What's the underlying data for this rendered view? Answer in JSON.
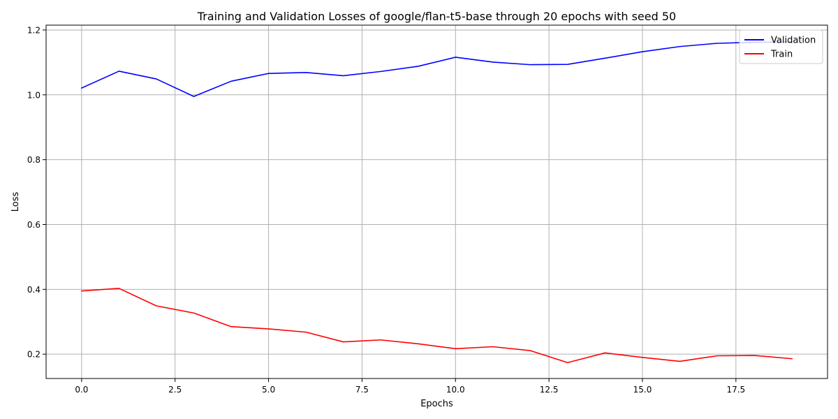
{
  "chart_data": {
    "type": "line",
    "title": "Training and Validation Losses of google/flan-t5-base through 20 epochs with seed 50",
    "xlabel": "Epochs",
    "ylabel": "Loss",
    "xlim": [
      -0.95,
      19.95
    ],
    "ylim": [
      0.125,
      1.215
    ],
    "xticks": [
      0.0,
      2.5,
      5.0,
      7.5,
      10.0,
      12.5,
      15.0,
      17.5
    ],
    "xtick_labels": [
      "0.0",
      "2.5",
      "5.0",
      "7.5",
      "10.0",
      "12.5",
      "15.0",
      "17.5"
    ],
    "yticks": [
      0.2,
      0.4,
      0.6,
      0.8,
      1.0,
      1.2
    ],
    "ytick_labels": [
      "0.2",
      "0.4",
      "0.6",
      "0.8",
      "1.0",
      "1.2"
    ],
    "grid": true,
    "legend_position": "top-right",
    "x": [
      0,
      1,
      2,
      3,
      4,
      5,
      6,
      7,
      8,
      9,
      10,
      11,
      12,
      13,
      14,
      15,
      16,
      17,
      18,
      19
    ],
    "series": [
      {
        "name": "Validation",
        "color": "#0000ff",
        "values": [
          1.021,
          1.073,
          1.049,
          0.995,
          1.042,
          1.066,
          1.069,
          1.059,
          1.072,
          1.088,
          1.116,
          1.101,
          1.093,
          1.094,
          1.113,
          1.133,
          1.149,
          1.159,
          1.162,
          1.163
        ]
      },
      {
        "name": "Train",
        "color": "#ff0000",
        "values": [
          0.395,
          0.403,
          0.349,
          0.327,
          0.285,
          0.278,
          0.268,
          0.238,
          0.244,
          0.232,
          0.217,
          0.223,
          0.211,
          0.174,
          0.204,
          0.19,
          0.178,
          0.195,
          0.196,
          0.186
        ]
      }
    ]
  }
}
